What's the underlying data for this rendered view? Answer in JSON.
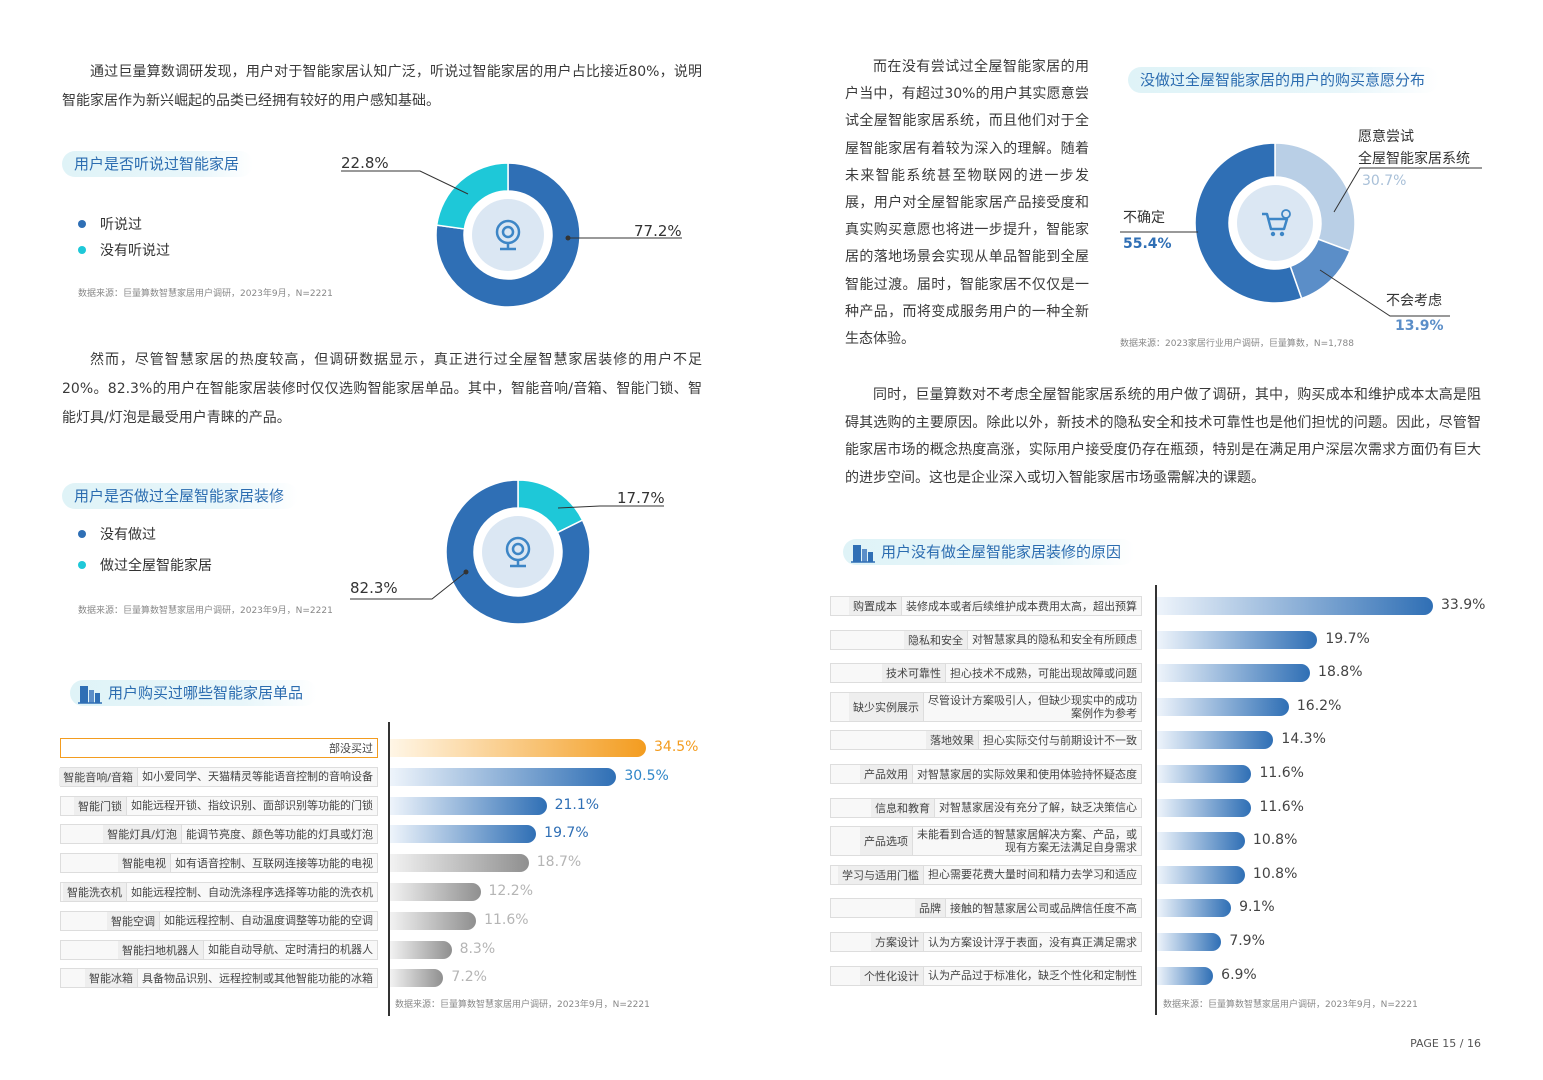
{
  "left": {
    "intro": "通过巨量算数调研发现，用户对于智能家居认知广泛，听说过智能家居的用户占比接近80%，说明智能家居作为新兴崛起的品类已经拥有较好的用户感知基础。",
    "chart1": {
      "title": "用户是否听说过智能家居",
      "legend": [
        "听说过",
        "没有听说过"
      ],
      "labels": [
        "22.8%",
        "77.2%"
      ],
      "source": "数据来源：巨量算数智慧家居用户调研，2023年9月，N=2221"
    },
    "para2": "然而，尽管智慧家居的热度较高，但调研数据显示，真正进行过全屋智慧家居装修的用户不足20%。82.3%的用户在智能家居装修时仅仅选购智能家居单品。其中，智能音响/音箱、智能门锁、智能灯具/灯泡是最受用户青睐的产品。",
    "chart2": {
      "title": "用户是否做过全屋智能家居装修",
      "legend": [
        "没有做过",
        "做过全屋智能家居"
      ],
      "labels": [
        "17.7%",
        "82.3%"
      ],
      "source": "数据来源：巨量算数智慧家居用户调研，2023年9月，N=2221"
    },
    "chart3": {
      "title": "用户购买过哪些智能家居单品",
      "source": "数据来源：巨量算数智慧家居用户调研，2023年9月，N=2221"
    }
  },
  "right": {
    "para1": "而在没有尝试过全屋智能家居的用户当中，有超过30%的用户其实愿意尝试全屋智能家居系统，而且他们对于全屋智能家居有着较为深入的理解。随着未来智能系统甚至物联网的进一步发展，用户对全屋智能家居产品接受度和真实购买意愿也将进一步提升，智能家居的落地场景会实现从单品智能到全屋智能过渡。届时，智能家居不仅仅是一种产品，而将变成服务用户的一种全新生态体验。",
    "chart4": {
      "title": "没做过全屋智能家居的用户的购买意愿分布",
      "label_try_1": "愿意尝试",
      "label_try_2": "全屋智能家居系统",
      "val_try": "30.7%",
      "label_unsure": "不确定",
      "val_unsure": "55.4%",
      "label_no": "不会考虑",
      "val_no": "13.9%",
      "source": "数据来源：2023家居行业用户调研，巨量算数，N=1,788"
    },
    "para2": "同时，巨量算数对不考虑全屋智能家居系统的用户做了调研，其中，购买成本和维护成本太高是阻碍其选购的主要原因。除此以外，新技术的隐私安全和技术可靠性也是他们担忧的问题。因此，尽管智能家居市场的概念热度高涨，实际用户接受度仍存在瓶颈，特别是在满足用户深层次需求方面仍有巨大的进步空间。这也是企业深入或切入智能家居市场亟需解决的课题。",
    "chart5": {
      "title": "用户没有做全屋智能家居装修的原因",
      "source": "数据来源：巨量算数智慧家居用户调研，2023年9月，N=2221"
    }
  },
  "page": "PAGE 15 / 16",
  "colors": {
    "dark_blue": "#2f6fb5",
    "teal": "#1ec8d8",
    "light_blue": "#b9cfe6",
    "mid_blue": "#5b8ec8",
    "orange": "#f39c1f"
  },
  "chart_data": [
    {
      "type": "pie",
      "title": "用户是否听说过智能家居",
      "categories": [
        "听说过",
        "没有听说过"
      ],
      "values": [
        77.2,
        22.8
      ]
    },
    {
      "type": "pie",
      "title": "用户是否做过全屋智能家居装修",
      "categories": [
        "没有做过",
        "做过全屋智能家居"
      ],
      "values": [
        82.3,
        17.7
      ]
    },
    {
      "type": "pie",
      "title": "没做过全屋智能家居的用户的购买意愿分布",
      "categories": [
        "愿意尝试全屋智能家居系统",
        "不会考虑",
        "不确定"
      ],
      "values": [
        30.7,
        13.9,
        55.4
      ]
    },
    {
      "type": "bar",
      "title": "用户购买过哪些智能家居单品",
      "categories": [
        {
          "name": "部没买过",
          "desc": ""
        },
        {
          "name": "智能音响/音箱",
          "desc": "如小爱同学、天猫精灵等能语音控制的音响设备"
        },
        {
          "name": "智能门锁",
          "desc": "如能远程开锁、指纹识别、面部识别等功能的门锁"
        },
        {
          "name": "智能灯具/灯泡",
          "desc": "能调节亮度、颜色等功能的灯具或灯泡"
        },
        {
          "name": "智能电视",
          "desc": "如有语音控制、互联网连接等功能的电视"
        },
        {
          "name": "智能洗衣机",
          "desc": "如能远程控制、自动洗涤程序选择等功能的洗衣机"
        },
        {
          "name": "智能空调",
          "desc": "如能远程控制、自动温度调整等功能的空调"
        },
        {
          "name": "智能扫地机器人",
          "desc": "如能自动导航、定时清扫的机器人"
        },
        {
          "name": "智能冰箱",
          "desc": "具备物品识别、远程控制或其他智能功能的冰箱"
        }
      ],
      "values": [
        34.5,
        30.5,
        21.1,
        19.7,
        18.7,
        12.2,
        11.6,
        8.3,
        7.2
      ],
      "labels": [
        "34.5%",
        "30.5%",
        "21.1%",
        "19.7%",
        "18.7%",
        "12.2%",
        "11.6%",
        "8.3%",
        "7.2%"
      ]
    },
    {
      "type": "bar",
      "title": "用户没有做全屋智能家居装修的原因",
      "categories": [
        {
          "name": "购置成本",
          "desc": "装修成本或者后续维护成本费用太高，超出预算"
        },
        {
          "name": "隐私和安全",
          "desc": "对智慧家具的隐私和安全有所顾虑"
        },
        {
          "name": "技术可靠性",
          "desc": "担心技术不成熟，可能出现故障或问题"
        },
        {
          "name": "缺少实例展示",
          "desc": "尽管设计方案吸引人，但缺少现实中的成功|案例作为参考"
        },
        {
          "name": "落地效果",
          "desc": "担心实际交付与前期设计不一致"
        },
        {
          "name": "产品效用",
          "desc": "对智慧家居的实际效果和使用体验持怀疑态度"
        },
        {
          "name": "信息和教育",
          "desc": "对智慧家居没有充分了解，缺乏决策信心"
        },
        {
          "name": "产品选项",
          "desc": "未能看到合适的智慧家居解决方案、产品，或|现有方案无法满足自身需求"
        },
        {
          "name": "学习与适用门槛",
          "desc": "担心需要花费大量时间和精力去学习和适应"
        },
        {
          "name": "品牌",
          "desc": "接触的智慧家居公司或品牌信任度不高"
        },
        {
          "name": "方案设计",
          "desc": "认为方案设计浮于表面，没有真正满足需求"
        },
        {
          "name": "个性化设计",
          "desc": "认为产品过于标准化，缺乏个性化和定制性"
        }
      ],
      "values": [
        33.9,
        19.7,
        18.8,
        16.2,
        14.3,
        11.6,
        11.6,
        10.8,
        10.8,
        9.1,
        7.9,
        6.9
      ],
      "labels": [
        "33.9%",
        "19.7%",
        "18.8%",
        "16.2%",
        "14.3%",
        "11.6%",
        "11.6%",
        "10.8%",
        "10.8%",
        "9.1%",
        "7.9%",
        "6.9%"
      ]
    }
  ]
}
